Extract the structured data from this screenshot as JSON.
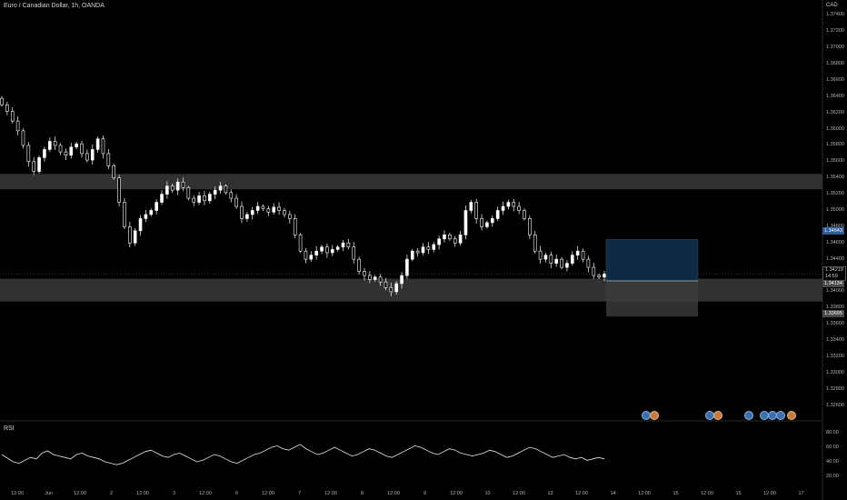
{
  "header": {
    "title": "Euro / Canadian Dollar, 1h, OANDA",
    "currency": "CAD"
  },
  "rsi": {
    "label": "RSI",
    "ticks": [
      "80.00",
      "60.00",
      "40.00",
      "20.00"
    ]
  },
  "price_axis": {
    "ticks": [
      "1.37400",
      "1.37200",
      "1.37000",
      "1.36800",
      "1.36600",
      "1.36400",
      "1.36200",
      "1.36000",
      "1.35800",
      "1.35600",
      "1.35400",
      "1.35200",
      "1.35000",
      "1.34800",
      "1.34600",
      "1.34400",
      "1.34200",
      "1.34000",
      "1.33800",
      "1.33600",
      "1.33400",
      "1.33200",
      "1.33000",
      "1.32800",
      "1.32600"
    ],
    "tags": {
      "current_price": "1.34219",
      "countdown": "14:59",
      "target": "1.34643",
      "entry": "1.34134",
      "stop": "1.33695"
    }
  },
  "time_axis": [
    "12:00",
    "Jun",
    "12:00",
    "2",
    "12:00",
    "3",
    "12:00",
    "6",
    "12:00",
    "7",
    "12:00",
    "8",
    "12:00",
    "9",
    "12:00",
    "10",
    "12:00",
    "13",
    "12:00",
    "14",
    "12:00",
    "15",
    "12:00",
    "16",
    "12:00",
    "17"
  ],
  "events": [
    {
      "type": "b",
      "icon": "flag-icon"
    },
    {
      "type": "o",
      "icon": "flag-icon"
    },
    {
      "type": "b",
      "icon": "flag-icon"
    },
    {
      "type": "o",
      "icon": "flag-icon"
    },
    {
      "type": "b",
      "icon": "flag-icon"
    },
    {
      "type": "b",
      "icon": "flag-icon"
    },
    {
      "type": "b",
      "icon": "flag-icon"
    },
    {
      "type": "b",
      "icon": "flag-icon"
    },
    {
      "type": "o",
      "icon": "flag-icon"
    }
  ],
  "chart_data": {
    "type": "candlestick",
    "symbol": "EURCAD",
    "interval": "1h",
    "ylim": [
      1.325,
      1.375
    ],
    "zones": [
      {
        "name": "resistance",
        "from": 1.3526,
        "to": 1.3545
      },
      {
        "name": "support",
        "from": 1.3388,
        "to": 1.3416
      }
    ],
    "position": {
      "target": 1.34643,
      "entry": 1.34134,
      "stop": 1.33695
    },
    "closes": [
      1.363,
      1.3622,
      1.361,
      1.3598,
      1.358,
      1.356,
      1.3548,
      1.3565,
      1.3575,
      1.3585,
      1.358,
      1.3572,
      1.3568,
      1.3578,
      1.3582,
      1.357,
      1.3562,
      1.3575,
      1.3588,
      1.357,
      1.3555,
      1.354,
      1.351,
      1.348,
      1.346,
      1.3475,
      1.349,
      1.3495,
      1.35,
      1.351,
      1.352,
      1.353,
      1.3525,
      1.3535,
      1.3528,
      1.3515,
      1.351,
      1.3518,
      1.3512,
      1.352,
      1.3525,
      1.353,
      1.3522,
      1.3515,
      1.3505,
      1.349,
      1.3495,
      1.35,
      1.3505,
      1.3502,
      1.3498,
      1.3504,
      1.35,
      1.3495,
      1.349,
      1.347,
      1.345,
      1.344,
      1.3445,
      1.345,
      1.3455,
      1.3448,
      1.3452,
      1.3455,
      1.346,
      1.3455,
      1.344,
      1.3425,
      1.342,
      1.3415,
      1.3418,
      1.3412,
      1.3405,
      1.34,
      1.341,
      1.342,
      1.344,
      1.345,
      1.3448,
      1.3455,
      1.3452,
      1.3458,
      1.3465,
      1.347,
      1.3465,
      1.346,
      1.347,
      1.35,
      1.351,
      1.349,
      1.348,
      1.3485,
      1.349,
      1.35,
      1.3505,
      1.351,
      1.3505,
      1.35,
      1.349,
      1.347,
      1.345,
      1.344,
      1.3445,
      1.3435,
      1.344,
      1.343,
      1.3435,
      1.3445,
      1.345,
      1.344,
      1.343,
      1.342,
      1.3418,
      1.3422
    ],
    "rsi_values": [
      50,
      45,
      40,
      38,
      42,
      46,
      44,
      52,
      55,
      50,
      48,
      46,
      44,
      50,
      52,
      48,
      46,
      44,
      40,
      38,
      36,
      38,
      42,
      46,
      50,
      54,
      56,
      52,
      48,
      46,
      50,
      52,
      48,
      44,
      40,
      42,
      46,
      50,
      48,
      44,
      40,
      38,
      42,
      46,
      50,
      52,
      56,
      60,
      62,
      58,
      56,
      60,
      64,
      58,
      54,
      50,
      52,
      56,
      60,
      56,
      52,
      48,
      50,
      54,
      58,
      56,
      52,
      48,
      46,
      50,
      54,
      58,
      62,
      60,
      56,
      52,
      50,
      54,
      58,
      56,
      52,
      50,
      48,
      50,
      52,
      56,
      54,
      50,
      46,
      48,
      52,
      56,
      60,
      58,
      54,
      50,
      46,
      48,
      50,
      46,
      44,
      46,
      42,
      44,
      46,
      44
    ]
  }
}
